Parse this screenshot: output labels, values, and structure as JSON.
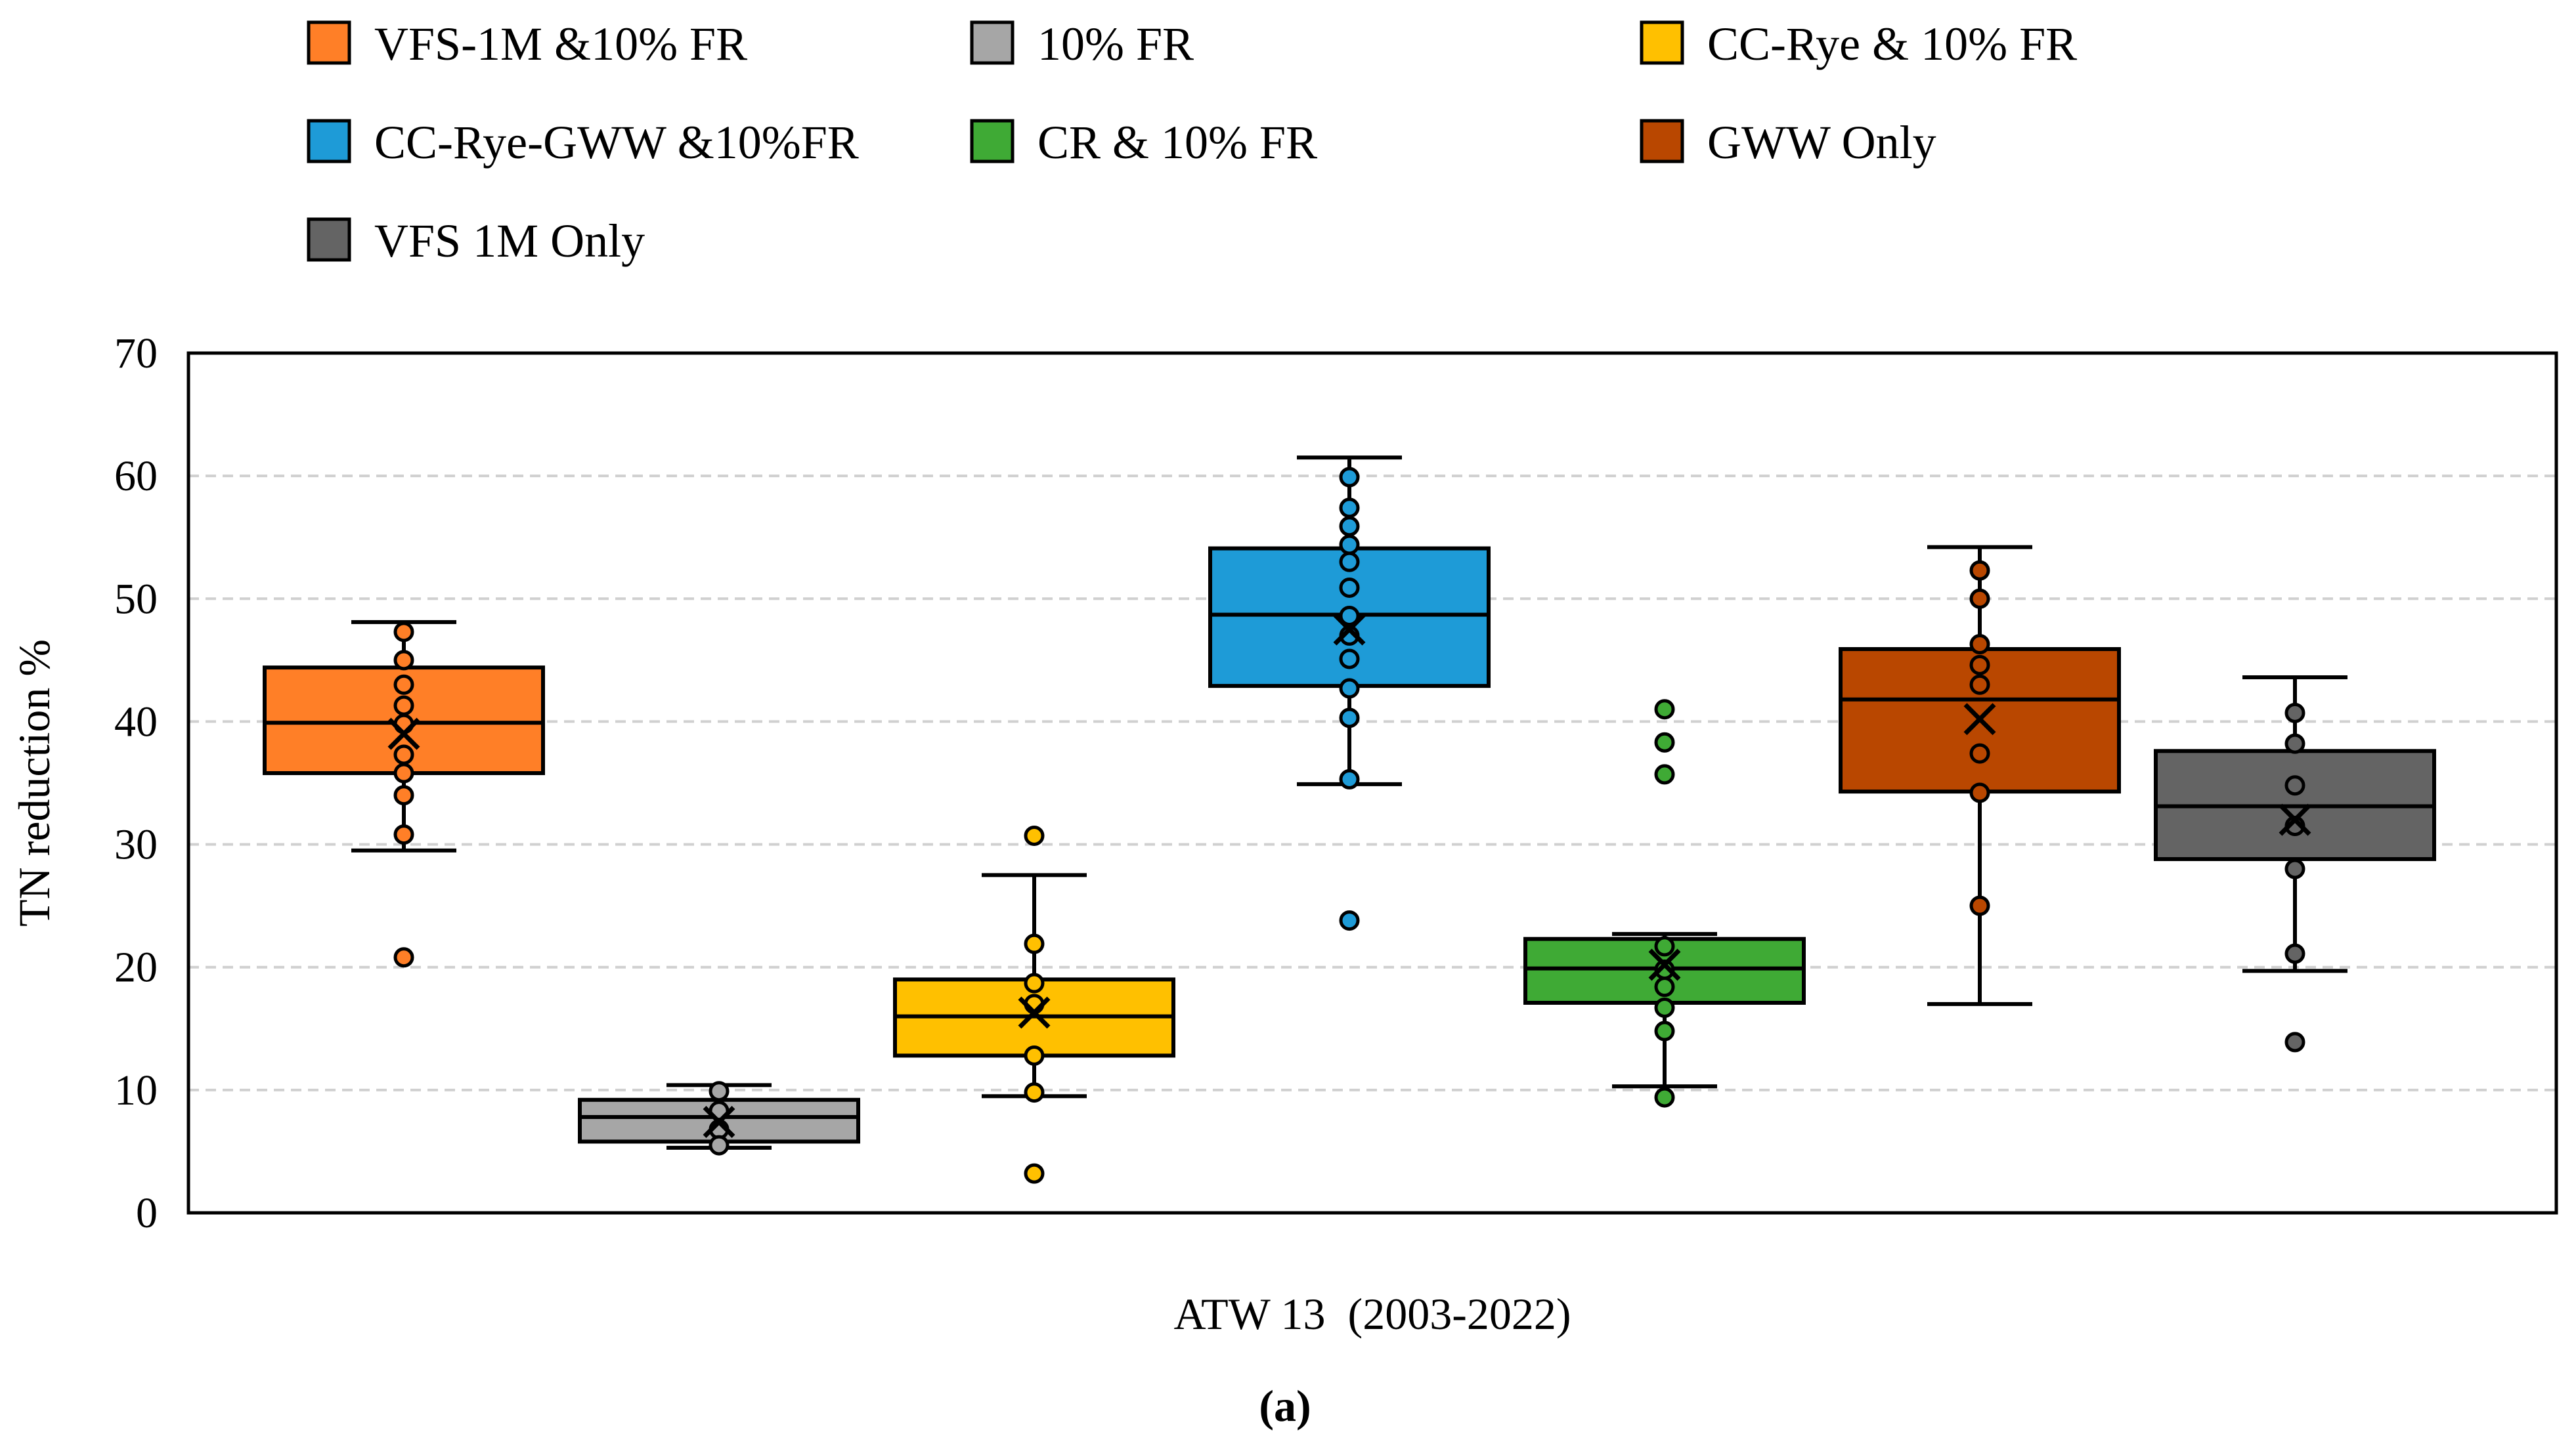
{
  "chart_data": {
    "type": "box",
    "x_category": "ATW 13  (2003-2022)",
    "ylabel": "TN reduction %",
    "panel_label": "(a)",
    "ylim": [
      0,
      70
    ],
    "yticks": [
      0,
      10,
      20,
      30,
      40,
      50,
      60,
      70
    ],
    "grid": "horizontal dashed",
    "legend_position": "top",
    "series": [
      {
        "name": "VFS-1M &10% FR",
        "color": "#FF7F27",
        "whisker_low": 29.5,
        "q1": 35.8,
        "median": 39.9,
        "q3": 44.4,
        "whisker_high": 48.1,
        "mean": 39.0,
        "points": [
          47.3,
          45.0,
          43.0,
          41.3,
          39.8,
          37.3,
          35.8,
          34.0,
          30.8,
          20.8
        ]
      },
      {
        "name": "10% FR",
        "color": "#A6A6A6",
        "whisker_low": 5.3,
        "q1": 5.8,
        "median": 7.8,
        "q3": 9.2,
        "whisker_high": 10.4,
        "mean": 7.4,
        "points": [
          9.9,
          8.3,
          6.8,
          5.5
        ]
      },
      {
        "name": "CC-Rye & 10% FR",
        "color": "#FFC000",
        "whisker_low": 9.5,
        "q1": 12.8,
        "median": 16.0,
        "q3": 19.0,
        "whisker_high": 27.5,
        "mean": 16.3,
        "points": [
          30.7,
          21.9,
          18.7,
          17.0,
          12.8,
          9.8,
          3.2
        ]
      },
      {
        "name": "CC-Rye-GWW &10%FR",
        "color": "#1E9BD7",
        "whisker_low": 34.9,
        "q1": 42.9,
        "median": 48.7,
        "q3": 54.1,
        "whisker_high": 61.5,
        "mean": 47.5,
        "points": [
          59.9,
          57.4,
          55.9,
          54.4,
          53.0,
          50.9,
          48.6,
          47.0,
          45.1,
          42.7,
          40.3,
          35.3,
          23.8
        ]
      },
      {
        "name": "CR & 10% FR",
        "color": "#3FAA35",
        "whisker_low": 10.3,
        "q1": 17.1,
        "median": 19.9,
        "q3": 22.3,
        "whisker_high": 22.7,
        "mean": 20.2,
        "points": [
          41.0,
          38.3,
          35.7,
          21.7,
          19.8,
          18.4,
          16.7,
          14.8,
          9.4
        ]
      },
      {
        "name": "GWW Only",
        "color": "#B94700",
        "whisker_low": 17.0,
        "q1": 34.3,
        "median": 41.8,
        "q3": 45.9,
        "whisker_high": 54.2,
        "mean": 40.2,
        "points": [
          52.3,
          50.0,
          46.3,
          44.6,
          43.0,
          37.4,
          34.2,
          25.0
        ]
      },
      {
        "name": "VFS 1M Only",
        "color": "#646464",
        "whisker_low": 19.7,
        "q1": 28.8,
        "median": 33.1,
        "q3": 37.6,
        "whisker_high": 43.6,
        "mean": 32.0,
        "points": [
          40.7,
          38.2,
          34.8,
          31.5,
          28.0,
          21.1,
          13.9
        ]
      }
    ]
  }
}
